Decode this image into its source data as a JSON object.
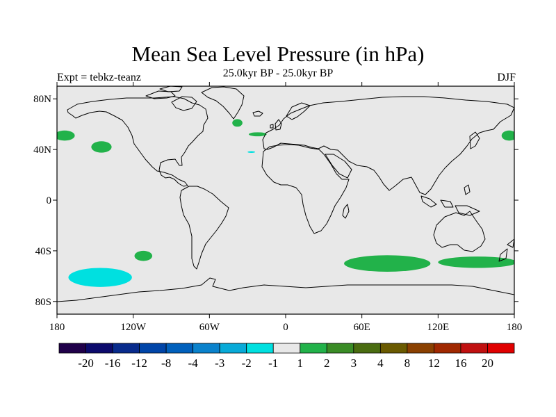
{
  "map": {
    "title": "Mean Sea Level Pressure (in hPa)",
    "subtitle": "25.0kyr BP - 25.0kyr BP",
    "left_string": "Expt = tebkz-teanz",
    "right_string": "DJF",
    "projection": "cylindrical-equidistant",
    "lon_range": [
      -180,
      180
    ],
    "lat_range": [
      -90,
      90
    ],
    "background_color": "#e8e8e8",
    "x_ticks": [
      {
        "lon": -180,
        "label": "180"
      },
      {
        "lon": -120,
        "label": "120W"
      },
      {
        "lon": -60,
        "label": "60W"
      },
      {
        "lon": 0,
        "label": "0"
      },
      {
        "lon": 60,
        "label": "60E"
      },
      {
        "lon": 120,
        "label": "120E"
      },
      {
        "lon": 180,
        "label": "180"
      }
    ],
    "y_ticks": [
      {
        "lat": 80,
        "label": "80N"
      },
      {
        "lat": 40,
        "label": "40N"
      },
      {
        "lat": 0,
        "label": "0"
      },
      {
        "lat": -40,
        "label": "40S"
      },
      {
        "lat": -80,
        "label": "80S"
      }
    ]
  },
  "colorbar": {
    "colors": [
      "#20004a",
      "#0c0a6c",
      "#082b8c",
      "#0045a8",
      "#0060bc",
      "#0a82cc",
      "#08aad8",
      "#00e0e0",
      "#e8e8e8",
      "#22b24a",
      "#3a8c26",
      "#4a6c10",
      "#6a5a00",
      "#8a4000",
      "#a02800",
      "#c01010",
      "#e00000"
    ],
    "labels": [
      "-20",
      "-16",
      "-12",
      "-8",
      "-4",
      "-3",
      "-2",
      "-1",
      "1",
      "2",
      "3",
      "4",
      "8",
      "12",
      "16",
      "20"
    ]
  },
  "anomalies": [
    {
      "lon": -174,
      "lat": 51,
      "rlon": 8,
      "rlat": 4,
      "color": "#22b24a"
    },
    {
      "lon": -145,
      "lat": 42,
      "rlon": 8,
      "rlat": 4.5,
      "color": "#22b24a"
    },
    {
      "lon": -38,
      "lat": 61,
      "rlon": 4,
      "rlat": 3,
      "color": "#22b24a"
    },
    {
      "lon": -22,
      "lat": 52,
      "rlon": 7,
      "rlat": 1.6,
      "color": "#22b24a"
    },
    {
      "lon": -27,
      "lat": 38,
      "rlon": 3,
      "rlat": 0.7,
      "color": "#00e0e0"
    },
    {
      "lon": 176,
      "lat": 51,
      "rlon": 6,
      "rlat": 4,
      "color": "#22b24a"
    },
    {
      "lon": -112,
      "lat": -44,
      "rlon": 7,
      "rlat": 4,
      "color": "#22b24a"
    },
    {
      "lon": -146,
      "lat": -61,
      "rlon": 25,
      "rlat": 7.5,
      "color": "#00e0e0"
    },
    {
      "lon": 80,
      "lat": -50,
      "rlon": 34,
      "rlat": 6.5,
      "color": "#22b24a"
    },
    {
      "lon": 151,
      "lat": -49,
      "rlon": 31,
      "rlat": 4.5,
      "color": "#22b24a"
    }
  ]
}
